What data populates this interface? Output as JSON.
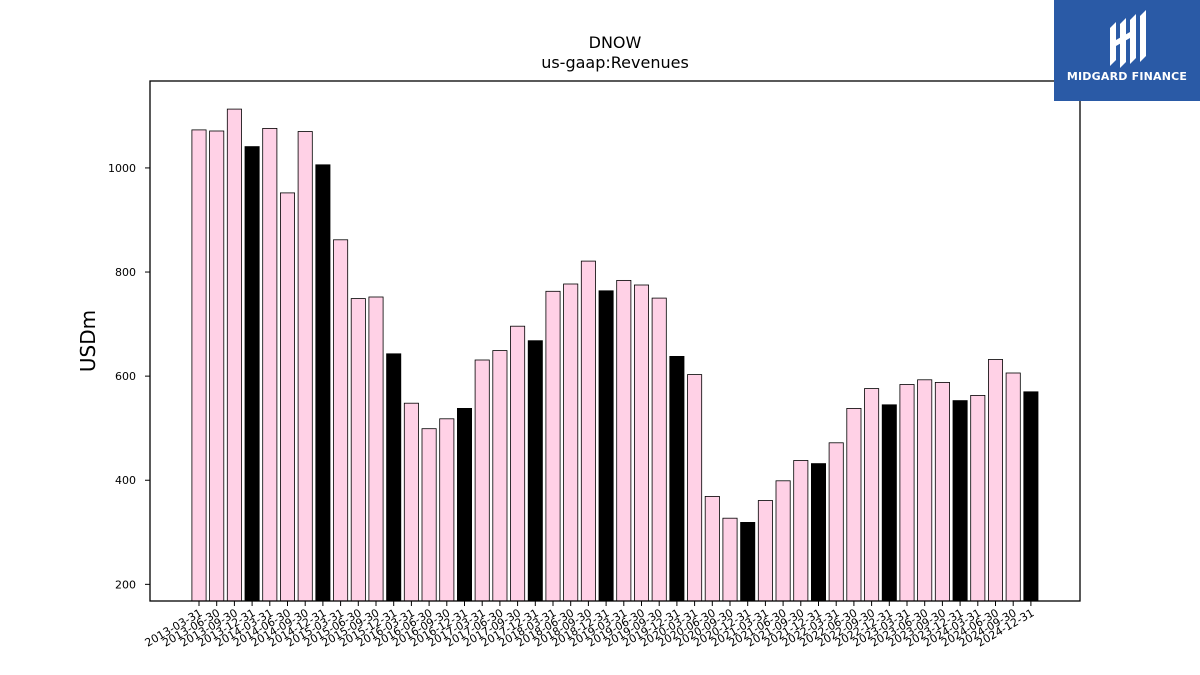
{
  "brand": {
    "name": "MIDGARD FINANCE",
    "bg_color": "#2a5aa6",
    "icon": "midgard-logo-icon"
  },
  "chart_data": {
    "type": "bar",
    "title": "DNOW",
    "subtitle": "us-gaap:Revenues",
    "xlabel": "",
    "ylabel": "USDm",
    "ylim": [
      168,
      1167
    ],
    "yticks": [
      200,
      400,
      600,
      800,
      1000
    ],
    "grid": false,
    "colors": {
      "quarter": "#ffd1e6",
      "year_end": "#000000",
      "edge": "#000000"
    },
    "categories": [
      "2013-03-31",
      "2013-06-30",
      "2013-09-30",
      "2013-12-31",
      "2014-03-31",
      "2014-06-30",
      "2014-09-30",
      "2014-12-31",
      "2015-03-31",
      "2015-06-30",
      "2015-09-30",
      "2015-12-31",
      "2016-03-31",
      "2016-06-30",
      "2016-09-30",
      "2016-12-31",
      "2017-03-31",
      "2017-06-30",
      "2017-09-30",
      "2017-12-31",
      "2018-03-31",
      "2018-06-30",
      "2018-09-30",
      "2018-12-31",
      "2019-03-31",
      "2019-06-30",
      "2019-09-30",
      "2019-12-31",
      "2020-03-31",
      "2020-06-30",
      "2020-09-30",
      "2020-12-31",
      "2021-03-31",
      "2021-06-30",
      "2021-09-30",
      "2021-12-31",
      "2022-03-31",
      "2022-06-30",
      "2022-09-30",
      "2022-12-31",
      "2023-03-31",
      "2023-06-30",
      "2023-09-30",
      "2023-12-31",
      "2024-03-31",
      "2024-06-30",
      "2024-09-30",
      "2024-12-31"
    ],
    "values": [
      1073,
      1071,
      1113,
      1041,
      1076,
      952,
      1070,
      1006,
      862,
      749,
      752,
      643,
      548,
      499,
      518,
      538,
      631,
      649,
      696,
      668,
      763,
      777,
      821,
      764,
      784,
      775,
      750,
      638,
      603,
      369,
      327,
      319,
      361,
      399,
      438,
      432,
      472,
      538,
      576,
      545,
      584,
      593,
      588,
      553,
      563,
      632,
      606,
      570
    ],
    "year_end": [
      false,
      false,
      false,
      true,
      false,
      false,
      false,
      true,
      false,
      false,
      false,
      true,
      false,
      false,
      false,
      true,
      false,
      false,
      false,
      true,
      false,
      false,
      false,
      true,
      false,
      false,
      false,
      true,
      false,
      false,
      false,
      true,
      false,
      false,
      false,
      true,
      false,
      false,
      false,
      true,
      false,
      false,
      false,
      true,
      false,
      false,
      false,
      true
    ]
  }
}
